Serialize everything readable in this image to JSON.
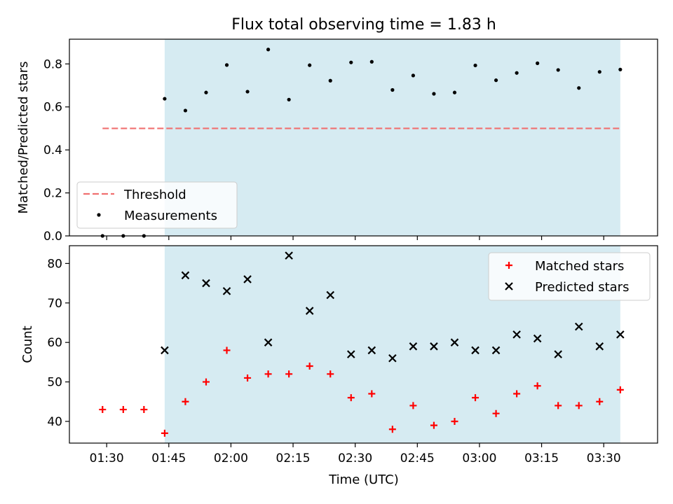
{
  "figure": {
    "title": "Flux total observing time = 1.83 h",
    "xlabel": "Time (UTC)"
  },
  "colors": {
    "shade": "#add8e6",
    "threshold": "#f07070",
    "matched": "#ff0000",
    "predicted": "#000000",
    "measurement": "#000000"
  },
  "chart_data": [
    {
      "type": "scatter",
      "ylabel": "Matched/Predicted stars",
      "ylim": [
        0,
        0.915
      ],
      "yticks": [
        0.0,
        0.2,
        0.4,
        0.6,
        0.8
      ],
      "xticks": [
        "01:30",
        "01:45",
        "02:00",
        "02:15",
        "02:30",
        "02:45",
        "03:00",
        "03:15",
        "03:30"
      ],
      "x_range": [
        "01:21",
        "03:43"
      ],
      "shaded_span": [
        "01:44",
        "03:34"
      ],
      "legend_position": "lower-left",
      "series": [
        {
          "name": "Threshold",
          "style": "dashed-line",
          "x": [
            "01:29",
            "03:34"
          ],
          "values": [
            0.5,
            0.5
          ]
        },
        {
          "name": "Measurements",
          "style": "dot",
          "x": [
            "01:29",
            "01:34",
            "01:39",
            "01:44",
            "01:49",
            "01:54",
            "01:59",
            "02:04",
            "02:09",
            "02:14",
            "02:19",
            "02:24",
            "02:29",
            "02:34",
            "02:39",
            "02:44",
            "02:49",
            "02:54",
            "02:59",
            "03:04",
            "03:09",
            "03:14",
            "03:19",
            "03:24",
            "03:29",
            "03:34"
          ],
          "values": [
            0.0,
            0.0,
            0.0,
            0.638,
            0.583,
            0.667,
            0.795,
            0.671,
            0.867,
            0.634,
            0.794,
            0.722,
            0.807,
            0.81,
            0.679,
            0.746,
            0.661,
            0.667,
            0.793,
            0.724,
            0.758,
            0.803,
            0.772,
            0.688,
            0.763,
            0.774
          ]
        }
      ]
    },
    {
      "type": "scatter",
      "ylabel": "Count",
      "ylim": [
        34.5,
        84.5
      ],
      "yticks": [
        40,
        50,
        60,
        70,
        80
      ],
      "xticks": [
        "01:30",
        "01:45",
        "02:00",
        "02:15",
        "02:30",
        "02:45",
        "03:00",
        "03:15",
        "03:30"
      ],
      "x_range": [
        "01:21",
        "03:43"
      ],
      "shaded_span": [
        "01:44",
        "03:34"
      ],
      "legend_position": "upper-right",
      "series": [
        {
          "name": "Matched stars",
          "style": "plus",
          "x": [
            "01:29",
            "01:34",
            "01:39",
            "01:44",
            "01:49",
            "01:54",
            "01:59",
            "02:04",
            "02:09",
            "02:14",
            "02:19",
            "02:24",
            "02:29",
            "02:34",
            "02:39",
            "02:44",
            "02:49",
            "02:54",
            "02:59",
            "03:04",
            "03:09",
            "03:14",
            "03:19",
            "03:24",
            "03:29",
            "03:34"
          ],
          "values": [
            43,
            43,
            43,
            37,
            45,
            50,
            58,
            51,
            52,
            52,
            54,
            52,
            46,
            47,
            38,
            44,
            39,
            40,
            46,
            42,
            47,
            49,
            44,
            44,
            45,
            48
          ]
        },
        {
          "name": "Predicted stars",
          "style": "cross",
          "x": [
            "01:44",
            "01:49",
            "01:54",
            "01:59",
            "02:04",
            "02:09",
            "02:14",
            "02:19",
            "02:24",
            "02:29",
            "02:34",
            "02:39",
            "02:44",
            "02:49",
            "02:54",
            "02:59",
            "03:04",
            "03:09",
            "03:14",
            "03:19",
            "03:24",
            "03:29",
            "03:34"
          ],
          "values": [
            58,
            77,
            75,
            73,
            76,
            60,
            82,
            68,
            72,
            57,
            58,
            56,
            59,
            59,
            60,
            58,
            58,
            62,
            61,
            57,
            64,
            59,
            62
          ]
        }
      ]
    }
  ]
}
